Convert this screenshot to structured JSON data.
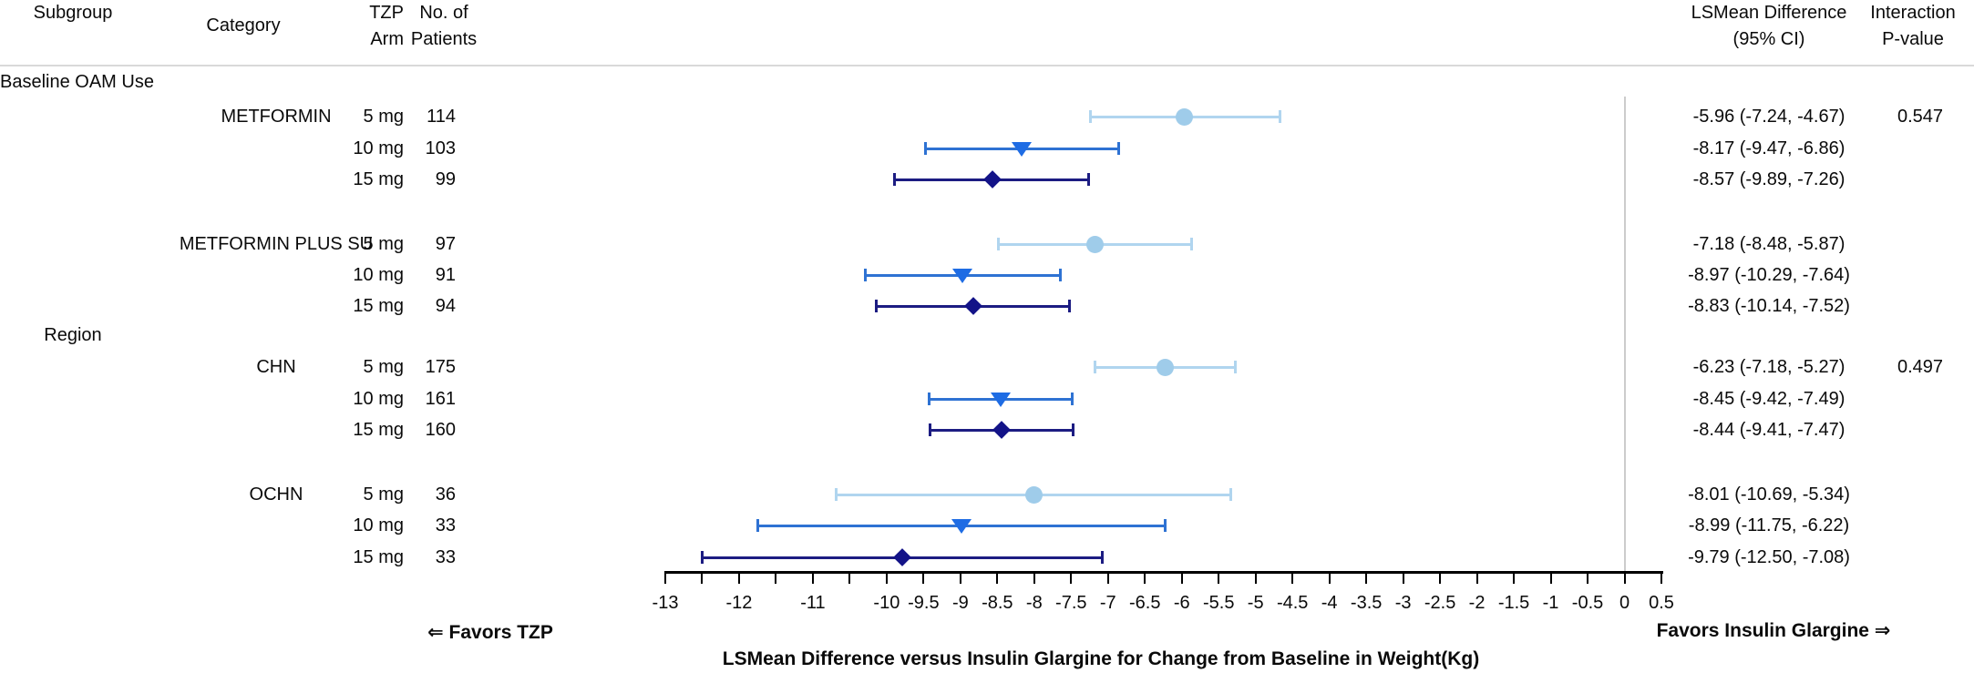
{
  "header": {
    "subgroup": "Subgroup",
    "category": "Category",
    "tzp_arm": [
      "TZP",
      "Arm"
    ],
    "patients": [
      "No. of",
      "Patients"
    ],
    "lsmean": [
      "LSMean Difference",
      "(95% CI)"
    ],
    "interaction": [
      "Interaction",
      "P-value"
    ]
  },
  "footer": {
    "favors_left": "⇐ Favors TZP",
    "favors_right": "Favors Insulin Glargine ⇒",
    "axis_title": "LSMean Difference versus Insulin Glargine for Change from Baseline in Weight(Kg)"
  },
  "colors": {
    "arm_5mg_marker": "#9fccea",
    "arm_5mg_line": "#b0d5ef",
    "arm_10mg_marker": "#1e6ce4",
    "arm_10mg_line": "#2e72d3",
    "arm_15mg_marker": "#131388",
    "arm_15mg_line": "#1c1c82",
    "reference_line": "#cccccc",
    "header_rule": "#d9d9d9",
    "axis": "#000000",
    "text": "#0a0a0a"
  },
  "chart_data": {
    "type": "forest",
    "xlabel": "LSMean Difference versus Insulin Glargine for Change from Baseline in Weight(Kg)",
    "x_axis": {
      "min": -13,
      "max": 0.5,
      "tick_step": 0.5,
      "unlabeled_ticks": [
        -12.5,
        -11.5,
        -10.5
      ],
      "tick_labels": [
        "-13",
        "-12",
        "-11",
        "-10",
        "-9.5",
        "-9",
        "-8.5",
        "-8",
        "-7.5",
        "-7",
        "-6.5",
        "-6",
        "-5.5",
        "-5",
        "-4.5",
        "-4",
        "-3.5",
        "-3",
        "-2.5",
        "-2",
        "-1.5",
        "-1",
        "-0.5",
        "0",
        "0.5"
      ]
    },
    "reference_line_x": 0,
    "marker_legend": {
      "5 mg": "circle",
      "10 mg": "triangle-down",
      "15 mg": "diamond"
    },
    "groups": [
      {
        "subgroup": "Baseline OAM Use",
        "interaction_p_value": "0.547",
        "categories": [
          {
            "category": "METFORMIN",
            "rows": [
              {
                "arm": "5 mg",
                "n": "114",
                "est": -5.96,
                "lo": -7.24,
                "hi": -4.67,
                "ci_text": "-5.96 (-7.24, -4.67)"
              },
              {
                "arm": "10 mg",
                "n": "103",
                "est": -8.17,
                "lo": -9.47,
                "hi": -6.86,
                "ci_text": "-8.17 (-9.47, -6.86)"
              },
              {
                "arm": "15 mg",
                "n": "99",
                "est": -8.57,
                "lo": -9.89,
                "hi": -7.26,
                "ci_text": "-8.57 (-9.89, -7.26)"
              }
            ]
          },
          {
            "category": "METFORMIN PLUS SU",
            "rows": [
              {
                "arm": "5 mg",
                "n": "97",
                "est": -7.18,
                "lo": -8.48,
                "hi": -5.87,
                "ci_text": "-7.18 (-8.48, -5.87)"
              },
              {
                "arm": "10 mg",
                "n": "91",
                "est": -8.97,
                "lo": -10.29,
                "hi": -7.64,
                "ci_text": "-8.97 (-10.29, -7.64)"
              },
              {
                "arm": "15 mg",
                "n": "94",
                "est": -8.83,
                "lo": -10.14,
                "hi": -7.52,
                "ci_text": "-8.83 (-10.14, -7.52)"
              }
            ]
          }
        ]
      },
      {
        "subgroup": "Region",
        "interaction_p_value": "0.497",
        "categories": [
          {
            "category": "CHN",
            "rows": [
              {
                "arm": "5 mg",
                "n": "175",
                "est": -6.23,
                "lo": -7.18,
                "hi": -5.27,
                "ci_text": "-6.23 (-7.18, -5.27)"
              },
              {
                "arm": "10 mg",
                "n": "161",
                "est": -8.45,
                "lo": -9.42,
                "hi": -7.49,
                "ci_text": "-8.45 (-9.42, -7.49)"
              },
              {
                "arm": "15 mg",
                "n": "160",
                "est": -8.44,
                "lo": -9.41,
                "hi": -7.47,
                "ci_text": "-8.44 (-9.41, -7.47)"
              }
            ]
          },
          {
            "category": "OCHN",
            "rows": [
              {
                "arm": "5 mg",
                "n": "36",
                "est": -8.01,
                "lo": -10.69,
                "hi": -5.34,
                "ci_text": "-8.01 (-10.69, -5.34)"
              },
              {
                "arm": "10 mg",
                "n": "33",
                "est": -8.99,
                "lo": -11.75,
                "hi": -6.22,
                "ci_text": "-8.99 (-11.75, -6.22)"
              },
              {
                "arm": "15 mg",
                "n": "33",
                "est": -9.79,
                "lo": -12.5,
                "hi": -7.08,
                "ci_text": "-9.79 (-12.50, -7.08)"
              }
            ]
          }
        ]
      }
    ]
  }
}
